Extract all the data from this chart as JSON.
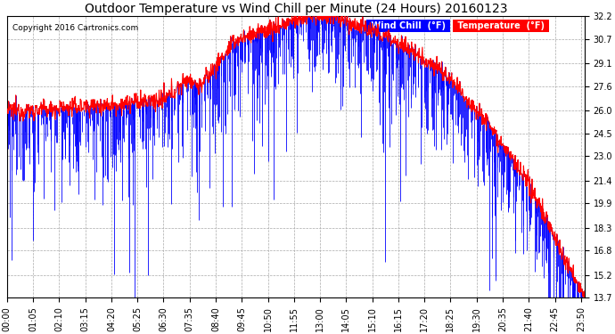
{
  "title": "Outdoor Temperature vs Wind Chill per Minute (24 Hours) 20160123",
  "copyright": "Copyright 2016 Cartronics.com",
  "yticks": [
    13.7,
    15.2,
    16.8,
    18.3,
    19.9,
    21.4,
    23.0,
    24.5,
    26.0,
    27.6,
    29.1,
    30.7,
    32.2
  ],
  "ymin": 13.7,
  "ymax": 32.2,
  "temp_color": "#0000FF",
  "windchill_color": "#FF0000",
  "background_color": "#FFFFFF",
  "grid_color": "#AAAAAA",
  "legend_windchill_bg": "#0000FF",
  "legend_temp_bg": "#FF0000",
  "title_fontsize": 10,
  "tick_fontsize": 7,
  "num_minutes": 1440,
  "xtick_step": 65
}
